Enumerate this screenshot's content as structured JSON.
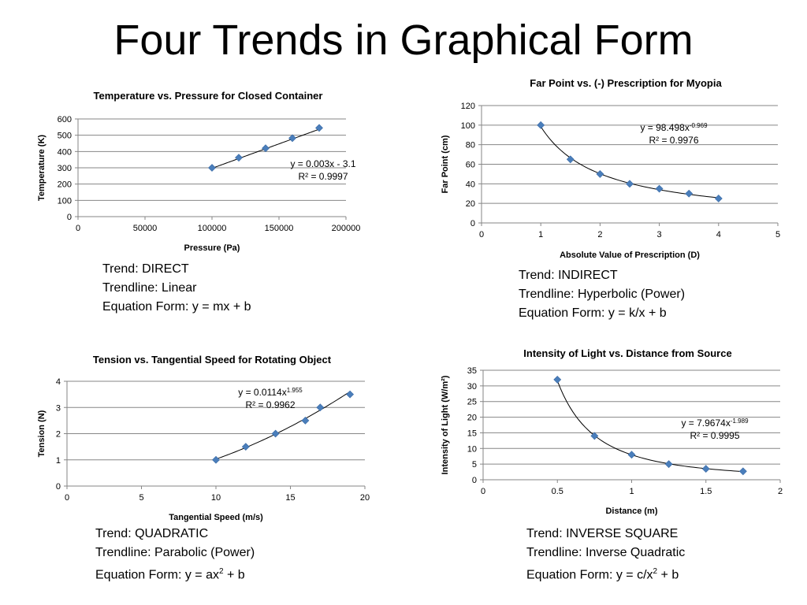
{
  "slide": {
    "title": "Four Trends in Graphical Form"
  },
  "chart_data": [
    {
      "type": "scatter",
      "title": "Temperature vs. Pressure for Closed Container",
      "xlabel": "Pressure (Pa)",
      "ylabel": "Temperature (K)",
      "xlim": [
        0,
        200000
      ],
      "ylim": [
        0,
        600
      ],
      "xticks": [
        0,
        50000,
        100000,
        150000,
        200000
      ],
      "yticks": [
        0,
        100,
        200,
        300,
        400,
        500,
        600
      ],
      "grid": true,
      "trendline": "linear",
      "trend_params": {
        "a": 0.003,
        "b": -3.1
      },
      "equation": {
        "lines": [
          [
            [
              "y = 0.003x - 3.1",
              ""
            ]
          ],
          [
            [
              "R² = 0.9997",
              ""
            ]
          ]
        ]
      },
      "series": [
        {
          "x": [
            100000,
            120000,
            140000,
            160000,
            180000
          ],
          "y": [
            300,
            362,
            420,
            482,
            545
          ]
        }
      ]
    },
    {
      "type": "scatter",
      "title": "Far Point vs. (-) Prescription for Myopia",
      "xlabel": "Absolute Value of Prescription (D)",
      "ylabel": "Far Point (cm)",
      "xlim": [
        0,
        5
      ],
      "ylim": [
        0,
        120
      ],
      "xticks": [
        0,
        1,
        2,
        3,
        4,
        5
      ],
      "yticks": [
        0,
        20,
        40,
        60,
        80,
        100,
        120
      ],
      "grid": true,
      "trendline": "power",
      "trend_params": {
        "a": 98.498,
        "b": -0.969
      },
      "equation": {
        "lines": [
          [
            [
              "y = 98.498x",
              "-0.969"
            ]
          ],
          [
            [
              "R² = 0.9976",
              ""
            ]
          ]
        ]
      },
      "series": [
        {
          "x": [
            1,
            1.5,
            2,
            2.5,
            3,
            3.5,
            4
          ],
          "y": [
            100,
            65,
            50,
            40,
            35,
            30,
            25
          ]
        }
      ]
    },
    {
      "type": "scatter",
      "title": "Tension vs. Tangential Speed for Rotating Object",
      "xlabel": "Tangential Speed (m/s)",
      "ylabel": "Tension (N)",
      "xlim": [
        0,
        20
      ],
      "ylim": [
        0,
        4
      ],
      "xticks": [
        0,
        5,
        10,
        15,
        20
      ],
      "yticks": [
        0,
        1,
        2,
        3,
        4
      ],
      "grid": true,
      "trendline": "power",
      "trend_params": {
        "a": 0.0114,
        "b": 1.955
      },
      "equation": {
        "lines": [
          [
            [
              "y = 0.0114x",
              "1.955"
            ]
          ],
          [
            [
              "R² = 0.9962",
              ""
            ]
          ]
        ]
      },
      "series": [
        {
          "x": [
            10,
            12,
            14,
            16,
            17,
            19
          ],
          "y": [
            1,
            1.5,
            2,
            2.5,
            3,
            3.5
          ]
        }
      ]
    },
    {
      "type": "scatter",
      "title": "Intensity of Light vs. Distance from Source",
      "xlabel": "Distance (m)",
      "ylabel": "Intensity of Light (W/m²)",
      "xlim": [
        0,
        2
      ],
      "ylim": [
        0,
        35
      ],
      "xticks": [
        0,
        0.5,
        1,
        1.5,
        2
      ],
      "yticks": [
        0,
        5,
        10,
        15,
        20,
        25,
        30,
        35
      ],
      "grid": true,
      "trendline": "power",
      "trend_params": {
        "a": 7.9674,
        "b": -1.989
      },
      "equation": {
        "lines": [
          [
            [
              "y = 7.9674x",
              "-1.989"
            ]
          ],
          [
            [
              "R² = 0.9995",
              ""
            ]
          ]
        ]
      },
      "series": [
        {
          "x": [
            0.5,
            0.75,
            1,
            1.25,
            1.5,
            1.75
          ],
          "y": [
            32,
            14,
            8,
            5,
            3.5,
            2.7
          ]
        }
      ]
    }
  ],
  "captions": [
    {
      "trend": "Trend:  DIRECT",
      "trendline": "Trendline:  Linear",
      "eq_parts": [
        [
          "Equation Form:  y = mx + b",
          ""
        ]
      ]
    },
    {
      "trend": "Trend:  INDIRECT",
      "trendline": "Trendline: Hyperbolic (Power)",
      "eq_parts": [
        [
          "Equation Form: y = k/x + b",
          ""
        ]
      ]
    },
    {
      "trend": "Trend:  QUADRATIC",
      "trendline": "Trendline:  Parabolic (Power)",
      "eq_parts": [
        [
          "Equation Form: y = ax",
          "2"
        ],
        [
          " + b",
          ""
        ]
      ]
    },
    {
      "trend": "Trend:  INVERSE SQUARE",
      "trendline": "Trendline: Inverse Quadratic",
      "eq_parts": [
        [
          "Equation Form: y = c/x",
          "2"
        ],
        [
          " + b",
          ""
        ]
      ]
    }
  ]
}
